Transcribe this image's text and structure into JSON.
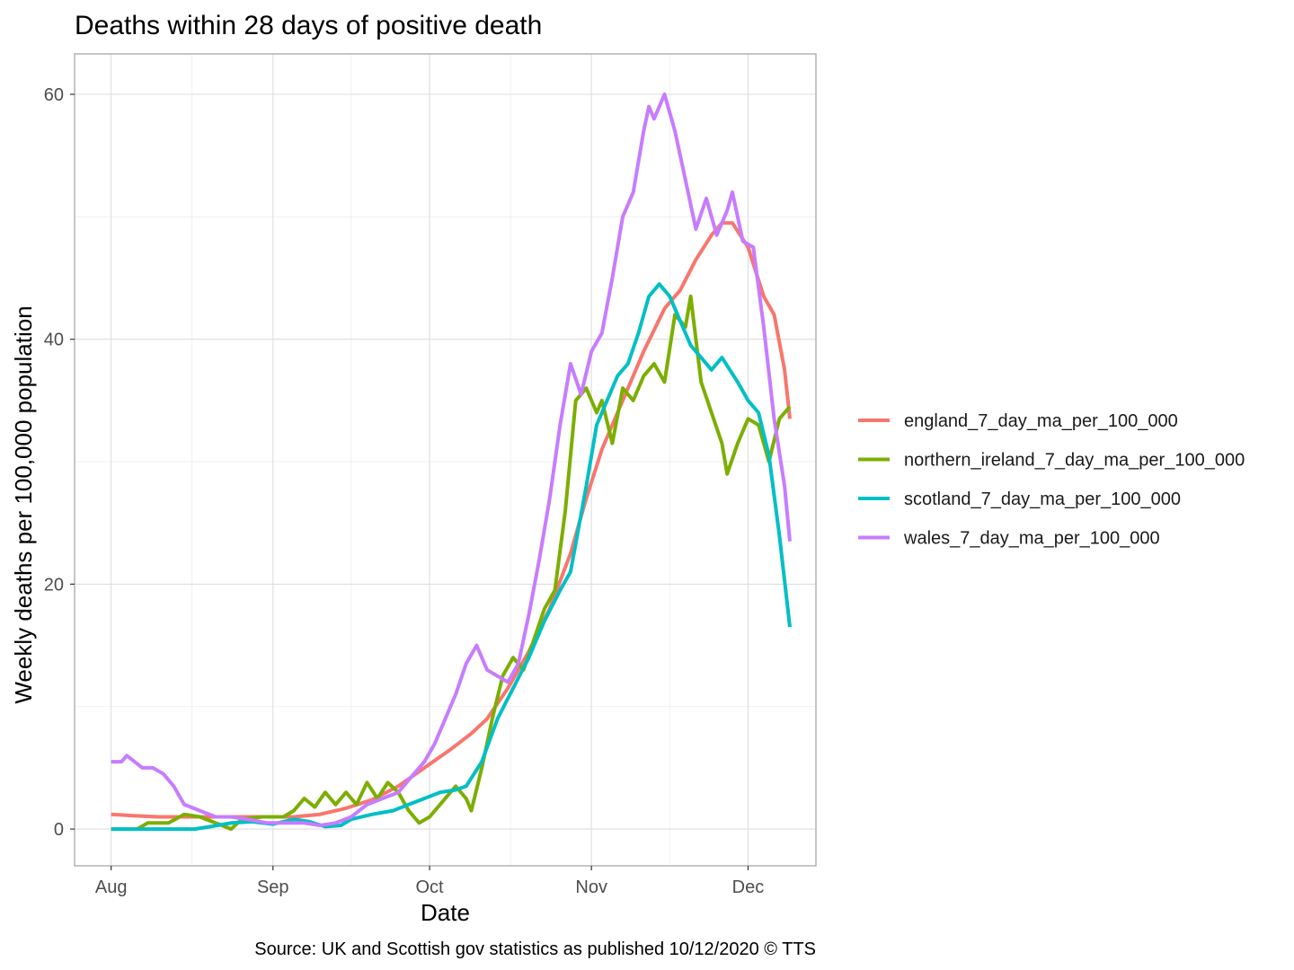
{
  "chart_data": {
    "type": "line",
    "title": "Deaths within 28 days of positive death",
    "xlabel": "Date",
    "ylabel": "Weekly deaths per 100,000 population",
    "caption": "Source: UK and Scottish gov statistics as published 10/12/2020  © TTS",
    "grid": true,
    "legend_position": "right",
    "x_ticks": [
      "Aug",
      "Sep",
      "Oct",
      "Nov",
      "Dec"
    ],
    "x_tick_dates": [
      "2020-08-01",
      "2020-09-01",
      "2020-10-01",
      "2020-11-01",
      "2020-12-01"
    ],
    "xlim": [
      "2020-07-25",
      "2020-12-14"
    ],
    "y_ticks": [
      0,
      20,
      40,
      60
    ],
    "ylim": [
      -3,
      63.3
    ],
    "series": [
      {
        "name": "england_7_day_ma_per_100_000",
        "color": "#F8766D",
        "points": [
          [
            "2020-08-01",
            1.2
          ],
          [
            "2020-08-05",
            1.1
          ],
          [
            "2020-08-10",
            1.0
          ],
          [
            "2020-08-15",
            1.0
          ],
          [
            "2020-08-20",
            1.0
          ],
          [
            "2020-08-25",
            1.0
          ],
          [
            "2020-08-30",
            1.0
          ],
          [
            "2020-09-05",
            1.0
          ],
          [
            "2020-09-10",
            1.2
          ],
          [
            "2020-09-15",
            1.7
          ],
          [
            "2020-09-20",
            2.4
          ],
          [
            "2020-09-25",
            3.5
          ],
          [
            "2020-09-30",
            5.0
          ],
          [
            "2020-10-05",
            6.5
          ],
          [
            "2020-10-09",
            7.8
          ],
          [
            "2020-10-12",
            9.0
          ],
          [
            "2020-10-16",
            11.5
          ],
          [
            "2020-10-20",
            14.5
          ],
          [
            "2020-10-24",
            18.0
          ],
          [
            "2020-10-28",
            22.5
          ],
          [
            "2020-10-31",
            27.0
          ],
          [
            "2020-11-03",
            31.0
          ],
          [
            "2020-11-07",
            35.0
          ],
          [
            "2020-11-11",
            39.0
          ],
          [
            "2020-11-15",
            42.5
          ],
          [
            "2020-11-18",
            44.0
          ],
          [
            "2020-11-21",
            46.5
          ],
          [
            "2020-11-24",
            48.5
          ],
          [
            "2020-11-26",
            49.5
          ],
          [
            "2020-11-28",
            49.5
          ],
          [
            "2020-12-01",
            47.5
          ],
          [
            "2020-12-04",
            43.5
          ],
          [
            "2020-12-06",
            42.0
          ],
          [
            "2020-12-08",
            37.5
          ],
          [
            "2020-12-09",
            33.5
          ]
        ]
      },
      {
        "name": "northern_ireland_7_day_ma_per_100_000",
        "color": "#7CAE00",
        "points": [
          [
            "2020-08-01",
            0.0
          ],
          [
            "2020-08-06",
            0.0
          ],
          [
            "2020-08-08",
            0.5
          ],
          [
            "2020-08-12",
            0.5
          ],
          [
            "2020-08-15",
            1.2
          ],
          [
            "2020-08-18",
            1.0
          ],
          [
            "2020-08-21",
            0.5
          ],
          [
            "2020-08-24",
            0.0
          ],
          [
            "2020-08-26",
            0.8
          ],
          [
            "2020-08-30",
            1.0
          ],
          [
            "2020-09-03",
            1.0
          ],
          [
            "2020-09-05",
            1.5
          ],
          [
            "2020-09-07",
            2.5
          ],
          [
            "2020-09-09",
            1.8
          ],
          [
            "2020-09-11",
            3.0
          ],
          [
            "2020-09-13",
            2.0
          ],
          [
            "2020-09-15",
            3.0
          ],
          [
            "2020-09-17",
            2.0
          ],
          [
            "2020-09-19",
            3.8
          ],
          [
            "2020-09-21",
            2.5
          ],
          [
            "2020-09-23",
            3.8
          ],
          [
            "2020-09-25",
            3.0
          ],
          [
            "2020-09-27",
            1.5
          ],
          [
            "2020-09-29",
            0.5
          ],
          [
            "2020-10-01",
            1.0
          ],
          [
            "2020-10-03",
            2.0
          ],
          [
            "2020-10-06",
            3.5
          ],
          [
            "2020-10-08",
            2.5
          ],
          [
            "2020-10-09",
            1.5
          ],
          [
            "2020-10-11",
            5.0
          ],
          [
            "2020-10-13",
            9.0
          ],
          [
            "2020-10-15",
            12.5
          ],
          [
            "2020-10-17",
            14.0
          ],
          [
            "2020-10-19",
            13.0
          ],
          [
            "2020-10-21",
            15.5
          ],
          [
            "2020-10-23",
            18.0
          ],
          [
            "2020-10-25",
            19.5
          ],
          [
            "2020-10-27",
            26.0
          ],
          [
            "2020-10-29",
            35.0
          ],
          [
            "2020-10-31",
            36.0
          ],
          [
            "2020-11-02",
            34.0
          ],
          [
            "2020-11-03",
            35.0
          ],
          [
            "2020-11-05",
            31.5
          ],
          [
            "2020-11-07",
            36.0
          ],
          [
            "2020-11-09",
            35.0
          ],
          [
            "2020-11-11",
            37.0
          ],
          [
            "2020-11-13",
            38.0
          ],
          [
            "2020-11-15",
            36.5
          ],
          [
            "2020-11-17",
            42.0
          ],
          [
            "2020-11-19",
            41.0
          ],
          [
            "2020-11-20",
            43.5
          ],
          [
            "2020-11-22",
            36.5
          ],
          [
            "2020-11-24",
            34.0
          ],
          [
            "2020-11-26",
            31.5
          ],
          [
            "2020-11-27",
            29.0
          ],
          [
            "2020-11-29",
            31.5
          ],
          [
            "2020-12-01",
            33.5
          ],
          [
            "2020-12-03",
            33.0
          ],
          [
            "2020-12-05",
            30.0
          ],
          [
            "2020-12-07",
            33.5
          ],
          [
            "2020-12-09",
            34.5
          ]
        ]
      },
      {
        "name": "scotland_7_day_ma_per_100_000",
        "color": "#00BFC4",
        "points": [
          [
            "2020-08-01",
            0.0
          ],
          [
            "2020-08-10",
            0.0
          ],
          [
            "2020-08-17",
            0.0
          ],
          [
            "2020-08-20",
            0.2
          ],
          [
            "2020-08-24",
            0.5
          ],
          [
            "2020-08-28",
            0.6
          ],
          [
            "2020-09-01",
            0.4
          ],
          [
            "2020-09-05",
            0.8
          ],
          [
            "2020-09-08",
            0.6
          ],
          [
            "2020-09-11",
            0.2
          ],
          [
            "2020-09-14",
            0.3
          ],
          [
            "2020-09-16",
            0.8
          ],
          [
            "2020-09-20",
            1.2
          ],
          [
            "2020-09-24",
            1.5
          ],
          [
            "2020-09-27",
            2.0
          ],
          [
            "2020-09-30",
            2.5
          ],
          [
            "2020-10-03",
            3.0
          ],
          [
            "2020-10-06",
            3.2
          ],
          [
            "2020-10-08",
            3.5
          ],
          [
            "2020-10-11",
            5.5
          ],
          [
            "2020-10-14",
            9.0
          ],
          [
            "2020-10-17",
            11.5
          ],
          [
            "2020-10-20",
            14.0
          ],
          [
            "2020-10-23",
            17.0
          ],
          [
            "2020-10-26",
            19.5
          ],
          [
            "2020-10-28",
            21.0
          ],
          [
            "2020-10-31",
            28.0
          ],
          [
            "2020-11-02",
            33.0
          ],
          [
            "2020-11-04",
            35.0
          ],
          [
            "2020-11-06",
            37.0
          ],
          [
            "2020-11-08",
            38.0
          ],
          [
            "2020-11-10",
            40.5
          ],
          [
            "2020-11-12",
            43.5
          ],
          [
            "2020-11-14",
            44.5
          ],
          [
            "2020-11-16",
            43.5
          ],
          [
            "2020-11-18",
            41.5
          ],
          [
            "2020-11-20",
            39.5
          ],
          [
            "2020-11-22",
            38.5
          ],
          [
            "2020-11-24",
            37.5
          ],
          [
            "2020-11-26",
            38.5
          ],
          [
            "2020-11-29",
            36.5
          ],
          [
            "2020-12-01",
            35.0
          ],
          [
            "2020-12-03",
            34.0
          ],
          [
            "2020-12-05",
            30.5
          ],
          [
            "2020-12-07",
            24.0
          ],
          [
            "2020-12-09",
            16.5
          ]
        ]
      },
      {
        "name": "wales_7_day_ma_per_100_000",
        "color": "#C77CFF",
        "points": [
          [
            "2020-08-01",
            5.5
          ],
          [
            "2020-08-03",
            5.5
          ],
          [
            "2020-08-04",
            6.0
          ],
          [
            "2020-08-07",
            5.0
          ],
          [
            "2020-08-09",
            5.0
          ],
          [
            "2020-08-11",
            4.5
          ],
          [
            "2020-08-13",
            3.5
          ],
          [
            "2020-08-15",
            2.0
          ],
          [
            "2020-08-18",
            1.5
          ],
          [
            "2020-08-21",
            1.0
          ],
          [
            "2020-08-24",
            1.0
          ],
          [
            "2020-08-27",
            0.8
          ],
          [
            "2020-08-31",
            0.5
          ],
          [
            "2020-09-03",
            0.5
          ],
          [
            "2020-09-07",
            0.5
          ],
          [
            "2020-09-10",
            0.3
          ],
          [
            "2020-09-13",
            0.5
          ],
          [
            "2020-09-16",
            1.0
          ],
          [
            "2020-09-19",
            2.0
          ],
          [
            "2020-09-22",
            2.5
          ],
          [
            "2020-09-25",
            3.0
          ],
          [
            "2020-09-28",
            4.5
          ],
          [
            "2020-09-30",
            5.5
          ],
          [
            "2020-10-02",
            7.0
          ],
          [
            "2020-10-04",
            9.0
          ],
          [
            "2020-10-06",
            11.0
          ],
          [
            "2020-10-08",
            13.5
          ],
          [
            "2020-10-10",
            15.0
          ],
          [
            "2020-10-12",
            13.0
          ],
          [
            "2020-10-14",
            12.5
          ],
          [
            "2020-10-16",
            12.0
          ],
          [
            "2020-10-18",
            13.5
          ],
          [
            "2020-10-20",
            17.5
          ],
          [
            "2020-10-22",
            22.0
          ],
          [
            "2020-10-24",
            27.0
          ],
          [
            "2020-10-26",
            33.0
          ],
          [
            "2020-10-28",
            38.0
          ],
          [
            "2020-10-30",
            35.5
          ],
          [
            "2020-11-01",
            39.0
          ],
          [
            "2020-11-03",
            40.5
          ],
          [
            "2020-11-05",
            45.0
          ],
          [
            "2020-11-07",
            50.0
          ],
          [
            "2020-11-09",
            52.0
          ],
          [
            "2020-11-11",
            57.0
          ],
          [
            "2020-11-12",
            59.0
          ],
          [
            "2020-11-13",
            58.0
          ],
          [
            "2020-11-15",
            60.0
          ],
          [
            "2020-11-17",
            57.0
          ],
          [
            "2020-11-19",
            53.0
          ],
          [
            "2020-11-21",
            49.0
          ],
          [
            "2020-11-23",
            51.5
          ],
          [
            "2020-11-25",
            48.5
          ],
          [
            "2020-11-27",
            50.5
          ],
          [
            "2020-11-28",
            52.0
          ],
          [
            "2020-11-30",
            48.0
          ],
          [
            "2020-12-02",
            47.5
          ],
          [
            "2020-12-04",
            41.0
          ],
          [
            "2020-12-06",
            33.5
          ],
          [
            "2020-12-08",
            28.0
          ],
          [
            "2020-12-09",
            23.5
          ]
        ]
      }
    ]
  }
}
